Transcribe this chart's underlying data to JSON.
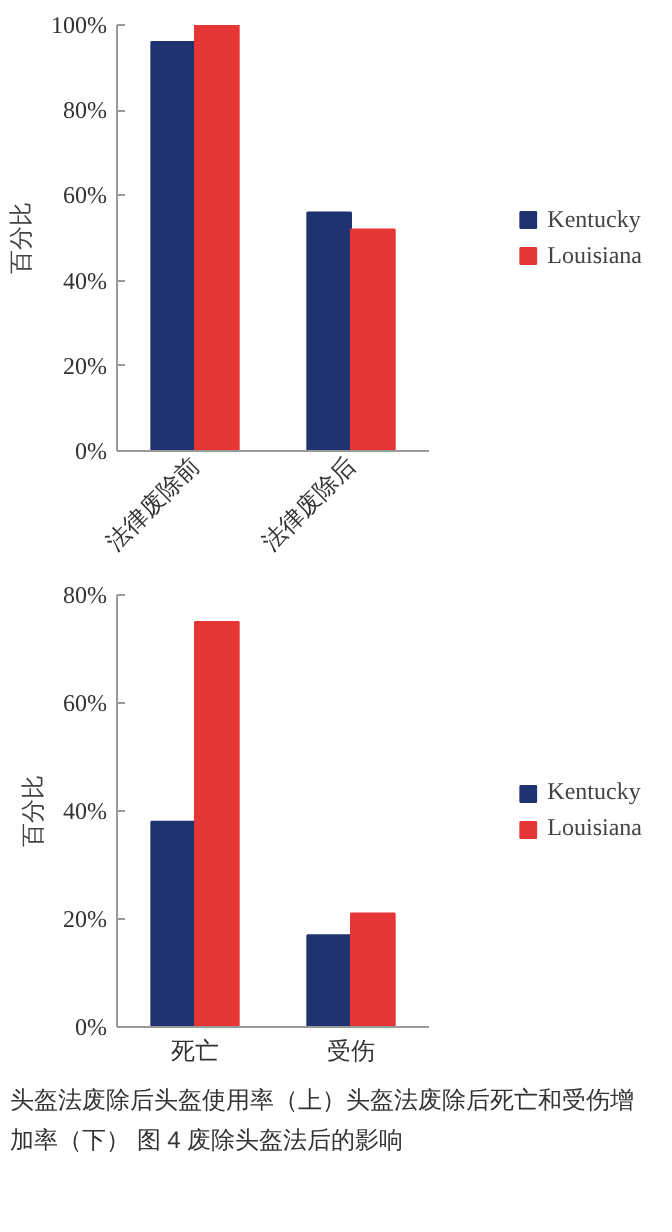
{
  "chart_data": [
    {
      "type": "bar",
      "ylabel": "百分比",
      "categories": [
        "法律废除前",
        "法律废除后"
      ],
      "series": [
        {
          "name": "Kentucky",
          "color": "#1f3370",
          "values": [
            96,
            56
          ]
        },
        {
          "name": "Louisiana",
          "color": "#e53535",
          "values": [
            100,
            52
          ]
        }
      ],
      "ylim": [
        0,
        100
      ],
      "yticks": [
        {
          "value": 0,
          "label": "0%"
        },
        {
          "value": 20,
          "label": "20%"
        },
        {
          "value": 40,
          "label": "40%"
        },
        {
          "value": 60,
          "label": "60%"
        },
        {
          "value": 80,
          "label": "80%"
        },
        {
          "value": 100,
          "label": "100%"
        }
      ],
      "grid": false,
      "legend": "right"
    },
    {
      "type": "bar",
      "ylabel": "百分比",
      "categories": [
        "死亡",
        "受伤"
      ],
      "series": [
        {
          "name": "Kentucky",
          "color": "#1f3370",
          "values": [
            38,
            17
          ]
        },
        {
          "name": "Louisiana",
          "color": "#e53535",
          "values": [
            75,
            21
          ]
        }
      ],
      "ylim": [
        0,
        80
      ],
      "yticks": [
        {
          "value": 0,
          "label": "0%"
        },
        {
          "value": 20,
          "label": "20%"
        },
        {
          "value": 40,
          "label": "40%"
        },
        {
          "value": 60,
          "label": "60%"
        },
        {
          "value": 80,
          "label": "80%"
        }
      ],
      "grid": false,
      "legend": "right",
      "annotations": [
        "头盔法废除后头盔使用率（上）头盔法废除后死亡和受伤增加率（下） 图 4 废除头盔法后的影响"
      ]
    }
  ]
}
